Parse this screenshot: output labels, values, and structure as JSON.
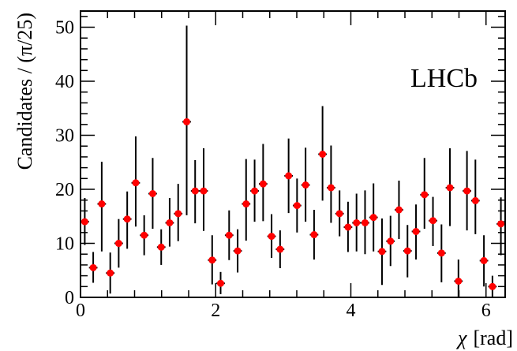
{
  "chart_data": {
    "type": "scatter",
    "title": "",
    "experiment_label": "LHCb",
    "xlabel_symbol": "χ",
    "xlabel_unit": "[rad]",
    "ylabel": "Candidates / (π/25)",
    "xlim": [
      0,
      6.2832
    ],
    "ylim": [
      0,
      53
    ],
    "x_ticks": [
      0,
      2,
      4,
      6
    ],
    "y_ticks": [
      0,
      10,
      20,
      30,
      40,
      50
    ],
    "grid": false,
    "bin_width": 0.12566,
    "marker_color": "#ff0000",
    "x": [
      0.063,
      0.188,
      0.314,
      0.44,
      0.565,
      0.691,
      0.817,
      0.942,
      1.068,
      1.194,
      1.319,
      1.445,
      1.571,
      1.696,
      1.822,
      1.948,
      2.073,
      2.199,
      2.325,
      2.45,
      2.576,
      2.702,
      2.827,
      2.953,
      3.079,
      3.204,
      3.33,
      3.456,
      3.581,
      3.707,
      3.833,
      3.958,
      4.084,
      4.21,
      4.335,
      4.461,
      4.587,
      4.712,
      4.838,
      4.964,
      5.089,
      5.215,
      5.341,
      5.466,
      5.592,
      5.718,
      5.843,
      5.969,
      6.095,
      6.22
    ],
    "y": [
      14.0,
      5.5,
      17.3,
      4.5,
      10.0,
      14.5,
      21.2,
      11.5,
      19.2,
      9.3,
      13.8,
      15.5,
      32.5,
      19.7,
      19.7,
      6.9,
      2.6,
      11.5,
      8.6,
      17.3,
      19.7,
      21.0,
      11.3,
      8.9,
      22.5,
      17.0,
      20.8,
      11.6,
      26.5,
      20.3,
      15.5,
      13.0,
      13.8,
      13.8,
      14.8,
      8.5,
      10.4,
      16.2,
      8.6,
      12.2,
      19.0,
      14.2,
      8.2,
      20.3,
      3.0,
      19.7,
      17.9,
      6.8,
      2.0,
      13.6
    ],
    "y_err_low": [
      4.3,
      2.8,
      8.8,
      3.8,
      4.5,
      5.5,
      8.1,
      3.7,
      6.5,
      3.3,
      4.4,
      5.1,
      17.3,
      6.0,
      7.4,
      4.5,
      2.0,
      4.6,
      4.0,
      6.8,
      5.7,
      6.9,
      4.0,
      3.5,
      6.9,
      5.0,
      6.8,
      4.6,
      8.6,
      6.5,
      4.2,
      4.6,
      5.3,
      5.8,
      6.3,
      6.2,
      4.6,
      5.4,
      4.9,
      5.2,
      6.3,
      4.7,
      5.4,
      7.1,
      3.0,
      7.3,
      6.2,
      4.8,
      2.0,
      5.8
    ],
    "y_err_high": [
      4.4,
      2.9,
      7.8,
      3.8,
      4.5,
      5.1,
      8.6,
      3.7,
      6.6,
      3.3,
      4.6,
      5.5,
      17.8,
      5.7,
      7.9,
      4.6,
      2.1,
      4.6,
      4.0,
      8.3,
      5.8,
      7.4,
      4.1,
      3.5,
      6.9,
      5.0,
      6.9,
      4.6,
      8.9,
      7.8,
      4.3,
      4.7,
      5.4,
      6.0,
      6.3,
      6.1,
      4.7,
      5.4,
      4.8,
      5.0,
      6.8,
      4.4,
      5.3,
      7.3,
      4.0,
      7.4,
      7.6,
      4.7,
      2.0,
      4.9
    ]
  }
}
